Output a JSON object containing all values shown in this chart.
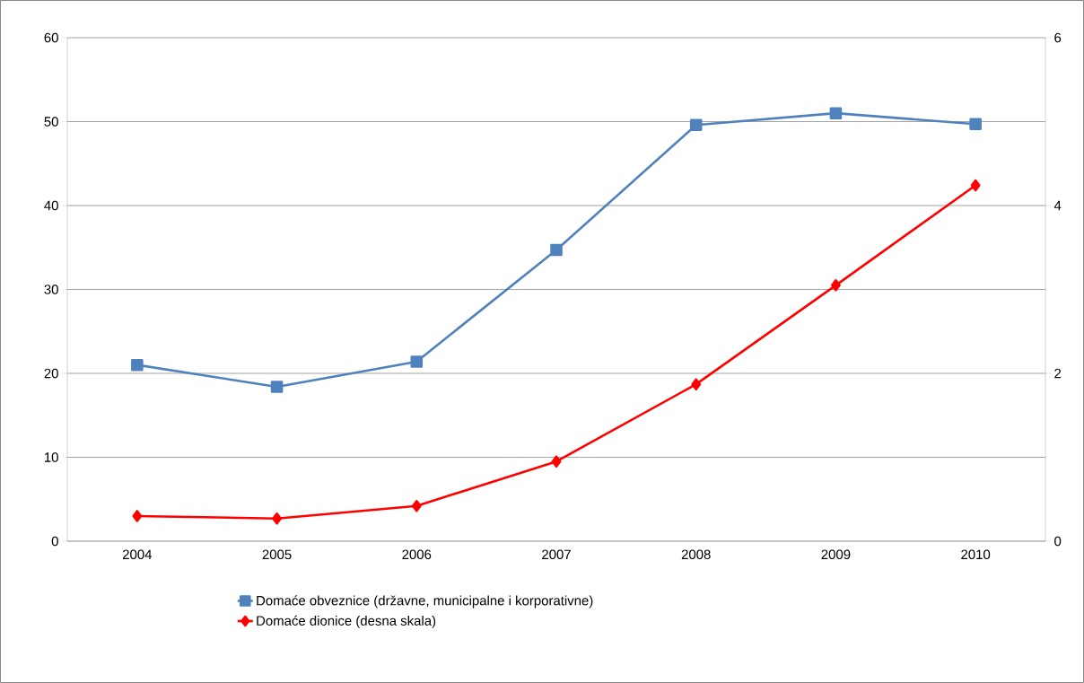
{
  "chart_data": {
    "type": "line",
    "categories": [
      "2004",
      "2005",
      "2006",
      "2007",
      "2008",
      "2009",
      "2010"
    ],
    "series": [
      {
        "name": "Domaće obveznice (državne, municipalne i korporativne)",
        "color": "#4f81bd",
        "marker": "square",
        "values": [
          21.0,
          18.4,
          21.4,
          34.7,
          49.6,
          51.0,
          49.7
        ]
      },
      {
        "name": "Domaće dionice (desna skala)",
        "color": "#ff0000",
        "marker": "diamond",
        "axis": "y2",
        "values": [
          0.3,
          0.27,
          0.42,
          0.95,
          1.87,
          3.05,
          4.24
        ]
      }
    ],
    "ylim": [
      0,
      60
    ],
    "yticks": [
      0,
      10,
      20,
      30,
      40,
      50,
      60
    ],
    "y2lim": [
      0,
      6
    ],
    "y2ticks": [
      0,
      2,
      4,
      6
    ],
    "grid": "y",
    "legend": "bottom"
  }
}
